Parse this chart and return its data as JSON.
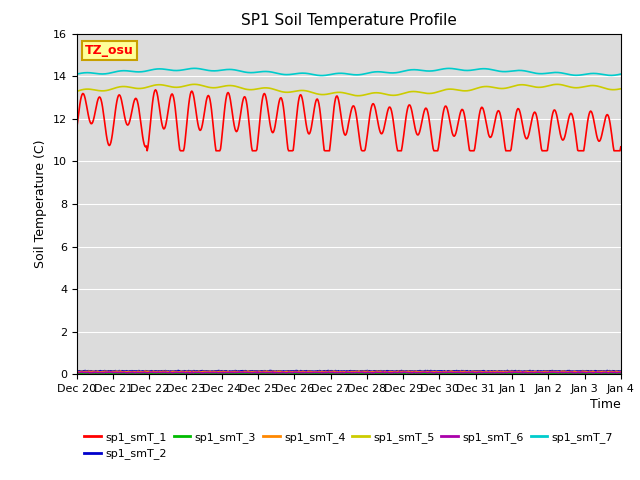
{
  "title": "SP1 Soil Temperature Profile",
  "xlabel": "Time",
  "ylabel": "Soil Temperature (C)",
  "ylim": [
    0,
    16
  ],
  "yticks": [
    0,
    2,
    4,
    6,
    8,
    10,
    12,
    14,
    16
  ],
  "bg_color": "#dcdcdc",
  "annotation_text": "TZ_osu",
  "annotation_bg": "#ffff99",
  "annotation_border": "#c8a000",
  "series": {
    "sp1_smT_1": {
      "color": "#ff0000",
      "lw": 1.2
    },
    "sp1_smT_2": {
      "color": "#0000cc",
      "lw": 1.2
    },
    "sp1_smT_3": {
      "color": "#00bb00",
      "lw": 1.2
    },
    "sp1_smT_4": {
      "color": "#ff8800",
      "lw": 1.2
    },
    "sp1_smT_5": {
      "color": "#cccc00",
      "lw": 1.2
    },
    "sp1_smT_6": {
      "color": "#aa00aa",
      "lw": 1.2
    },
    "sp1_smT_7": {
      "color": "#00cccc",
      "lw": 1.2
    }
  },
  "xtick_labels": [
    "Dec 20",
    "Dec 21",
    "Dec 22",
    "Dec 23",
    "Dec 24",
    "Dec 25",
    "Dec 26",
    "Dec 27",
    "Dec 28",
    "Dec 29",
    "Dec 30",
    "Dec 31",
    "Jan 1",
    "Jan 2",
    "Jan 3",
    "Jan 4"
  ],
  "num_days": 15
}
